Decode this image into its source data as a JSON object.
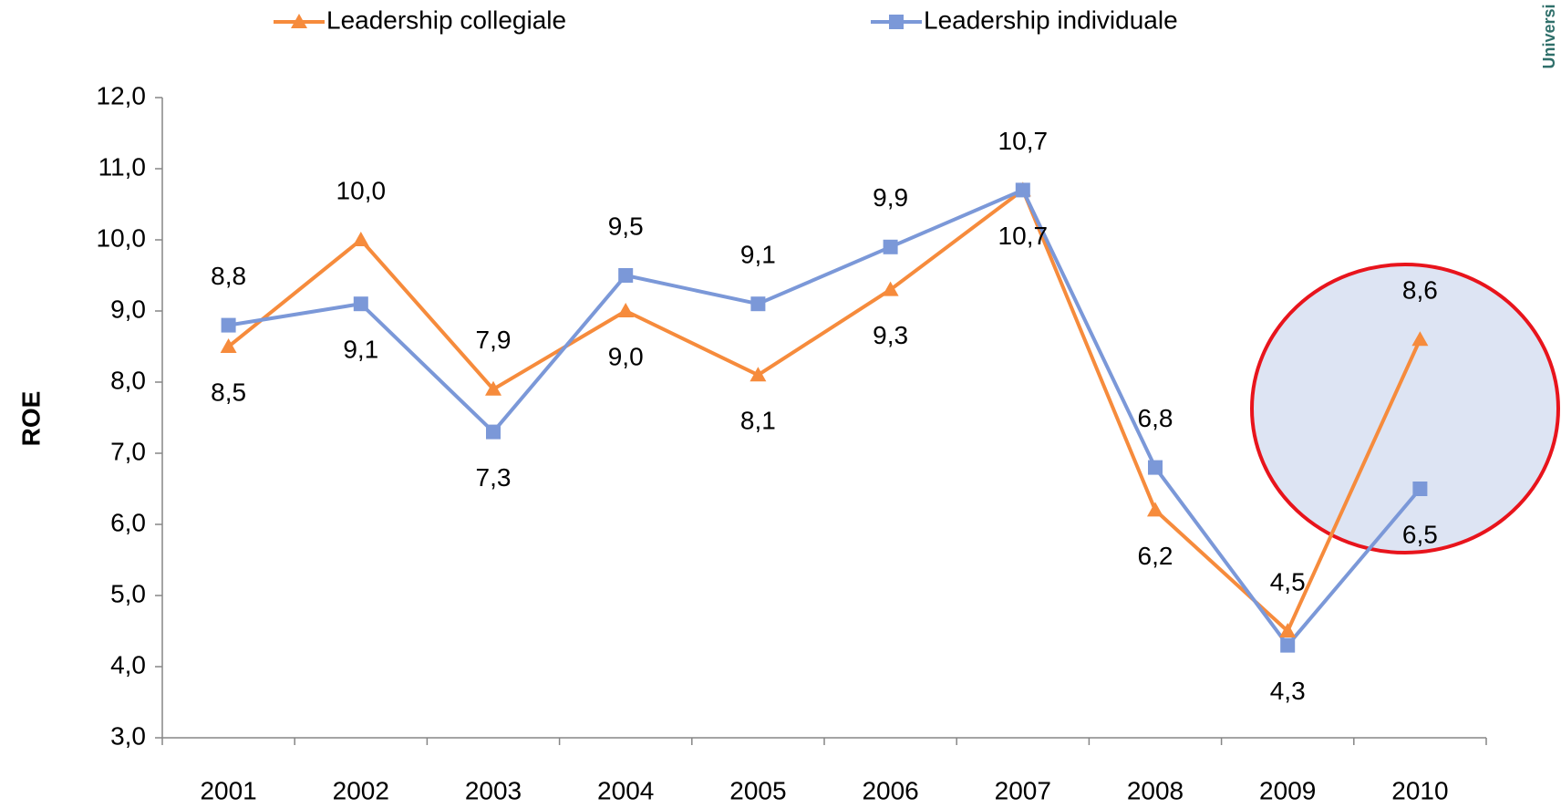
{
  "chart_data": {
    "type": "line",
    "y_label": "ROE",
    "logo_text": "Universi",
    "categories": [
      "2001",
      "2002",
      "2003",
      "2004",
      "2005",
      "2006",
      "2007",
      "2008",
      "2009",
      "2010"
    ],
    "series": [
      {
        "name": "Leadership collegiale",
        "color": "#f68b3c",
        "marker": "triangle",
        "values": [
          8.5,
          10.0,
          7.9,
          9.0,
          8.1,
          9.3,
          10.7,
          6.2,
          4.5,
          8.6
        ],
        "value_labels": [
          "8,5",
          "10,0",
          "7,9",
          "9,0",
          "8,1",
          "9,3",
          "10,7",
          "6,2",
          "4,5",
          "8,6"
        ]
      },
      {
        "name": "Leadership individuale",
        "color": "#7b98d8",
        "marker": "square",
        "values": [
          8.8,
          9.1,
          7.3,
          9.5,
          9.1,
          9.9,
          10.7,
          6.8,
          4.3,
          6.5
        ],
        "value_labels": [
          "8,8",
          "9,1",
          "7,3",
          "9,5",
          "9,1",
          "9,9",
          "10,7",
          "6,8",
          "4,3",
          "6,5"
        ]
      }
    ],
    "ylim": [
      3,
      12
    ],
    "yticks": [
      {
        "value": 3,
        "label": "3,0"
      },
      {
        "value": 4,
        "label": "4,0"
      },
      {
        "value": 5,
        "label": "5,0"
      },
      {
        "value": 6,
        "label": "6,0"
      },
      {
        "value": 7,
        "label": "7,0"
      },
      {
        "value": 8,
        "label": "8,0"
      },
      {
        "value": 9,
        "label": "9,0"
      },
      {
        "value": 10,
        "label": "10,0"
      },
      {
        "value": 11,
        "label": "11,0"
      },
      {
        "value": 12,
        "label": "12,0"
      }
    ],
    "grid": false,
    "legend": "top"
  }
}
